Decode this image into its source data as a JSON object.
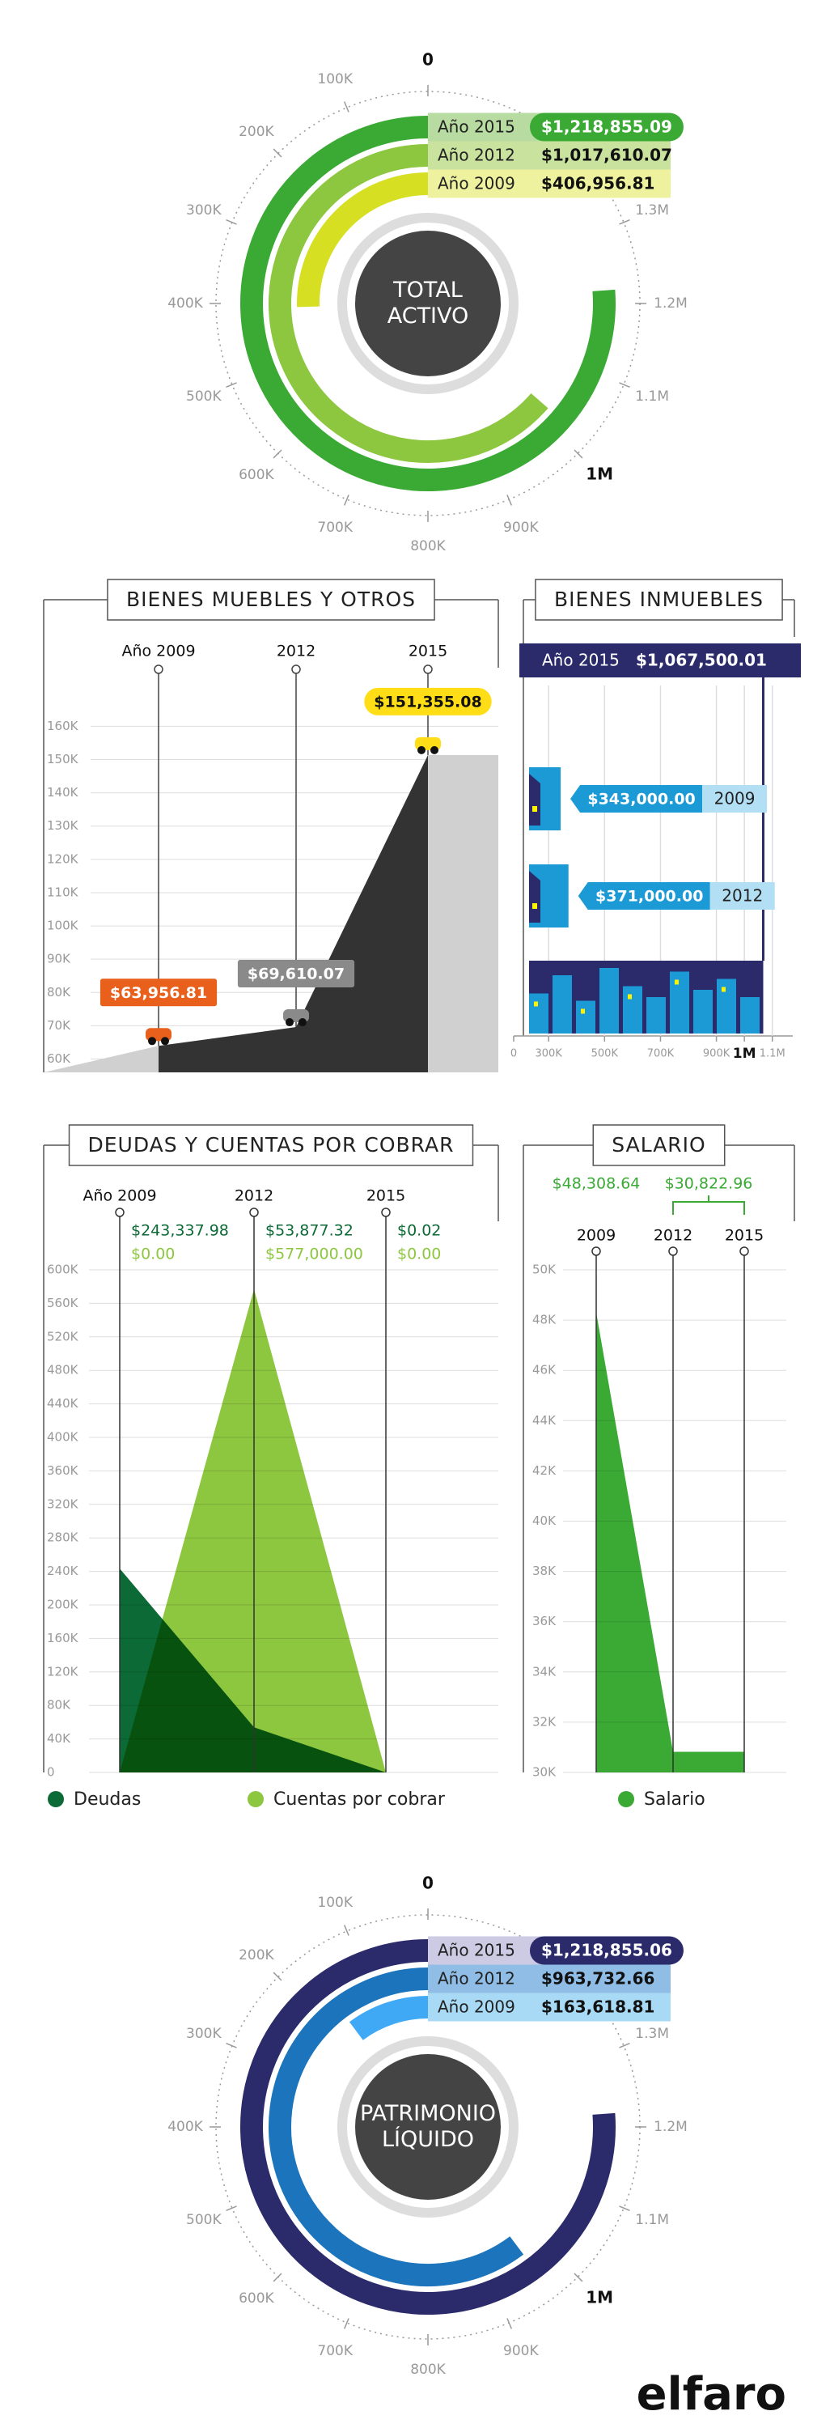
{
  "logo": "elfaro",
  "chart_data": [
    {
      "type": "radial-bar",
      "title": "TOTAL ACTIVO",
      "categories": [
        "Año 2015",
        "Año 2012",
        "Año 2009"
      ],
      "values": [
        1218855.09,
        1017610.07,
        406956.81
      ],
      "value_labels": [
        "$1,218,855.09",
        "$1,017,610.07",
        "$406,956.81"
      ],
      "colors": [
        "#3aaa35",
        "#8dc63f",
        "#d7df23"
      ],
      "label_colors": [
        "#b7dba0",
        "#c9e29e",
        "#eef29e"
      ],
      "ylim": [
        0,
        1600000
      ],
      "yticks": [
        0,
        {
          "value": 100000,
          "label": "100K"
        },
        {
          "value": 200000,
          "label": "200K"
        },
        {
          "value": 300000,
          "label": "300K"
        },
        {
          "value": 400000,
          "label": "400K"
        },
        {
          "value": 500000,
          "label": "500K"
        },
        {
          "value": 600000,
          "label": "600K"
        },
        {
          "value": 700000,
          "label": "700K"
        },
        {
          "value": 800000,
          "label": "800K"
        },
        {
          "value": 900000,
          "label": "900K"
        },
        {
          "value": 1000000,
          "label": "1M"
        },
        {
          "value": 1100000,
          "label": "1.1M"
        },
        {
          "value": 1200000,
          "label": "1.2M"
        },
        {
          "value": 1300000,
          "label": "1.3M"
        }
      ],
      "emphasized_tick": 1000000
    },
    {
      "type": "mountain",
      "title": "BIENES MUEBLES Y OTROS",
      "categories": [
        "Año 2009",
        "2012",
        "2015"
      ],
      "values": [
        63956.81,
        69610.07,
        151355.08
      ],
      "value_labels": [
        "$63,956.81",
        "$69,610.07",
        "$151,355.08"
      ],
      "label_colors": [
        "#e8601c",
        "#8a8a8a",
        "#ffde17"
      ],
      "color": "#333333",
      "ylim": [
        56000,
        163000
      ],
      "yticks": [
        {
          "value": 60000,
          "label": "60K"
        },
        {
          "value": 70000,
          "label": "70K"
        },
        {
          "value": 80000,
          "label": "80K"
        },
        {
          "value": 90000,
          "label": "90K"
        },
        {
          "value": 100000,
          "label": "100K"
        },
        {
          "value": 110000,
          "label": "110K"
        },
        {
          "value": 120000,
          "label": "120K"
        },
        {
          "value": 130000,
          "label": "130K"
        },
        {
          "value": 140000,
          "label": "140K"
        },
        {
          "value": 150000,
          "label": "150K"
        },
        {
          "value": 160000,
          "label": "160K"
        }
      ],
      "grid": true
    },
    {
      "type": "hbar",
      "title": "BIENES INMUEBLES",
      "categories": [
        "Año 2015",
        "2009",
        "2012"
      ],
      "values": [
        1067500.01,
        343000.0,
        371000.0
      ],
      "value_labels": [
        "$1,067,500.01",
        "$343,000.00",
        "$371,000.00"
      ],
      "color": "#1b9ad6",
      "xlim": [
        230000,
        1150000
      ],
      "xticks": [
        0,
        {
          "value": 300000,
          "label": "300K"
        },
        {
          "value": 500000,
          "label": "500K"
        },
        {
          "value": 700000,
          "label": "700K"
        },
        {
          "value": 900000,
          "label": "900K"
        },
        {
          "value": 1000000,
          "label": "1M"
        },
        {
          "value": 1100000,
          "label": "1.1M"
        }
      ],
      "emphasized_tick": 1000000,
      "grid": true
    },
    {
      "type": "area",
      "title": "DEUDAS Y CUENTAS POR COBRAR",
      "categories": [
        "Año 2009",
        "2012",
        "2015"
      ],
      "series": [
        {
          "name": "Deudas",
          "color": "#0b6a35",
          "values": [
            243337.98,
            53877.32,
            0.02
          ],
          "value_labels": [
            "$243,337.98",
            "$53,877.32",
            "$0.02"
          ]
        },
        {
          "name": "Cuentas por cobrar",
          "color": "#8dc63f",
          "values": [
            0,
            577000.0,
            0
          ],
          "value_labels": [
            "$0.00",
            "$577,000.00",
            "$0.00"
          ]
        }
      ],
      "ylim": [
        0,
        600000
      ],
      "yticks": [
        0,
        {
          "value": 40000,
          "label": "40K"
        },
        {
          "value": 80000,
          "label": "80K"
        },
        {
          "value": 120000,
          "label": "120K"
        },
        {
          "value": 160000,
          "label": "160K"
        },
        {
          "value": 200000,
          "label": "200K"
        },
        {
          "value": 240000,
          "label": "240K"
        },
        {
          "value": 280000,
          "label": "280K"
        },
        {
          "value": 320000,
          "label": "320K"
        },
        {
          "value": 360000,
          "label": "360K"
        },
        {
          "value": 400000,
          "label": "400K"
        },
        {
          "value": 440000,
          "label": "440K"
        },
        {
          "value": 480000,
          "label": "480K"
        },
        {
          "value": 520000,
          "label": "520K"
        },
        {
          "value": 560000,
          "label": "560K"
        },
        {
          "value": 600000,
          "label": "600K"
        }
      ],
      "grid": true
    },
    {
      "type": "area",
      "title": "SALARIO",
      "categories": [
        "2009",
        "2012",
        "2015"
      ],
      "series": [
        {
          "name": "Salario",
          "color": "#3aaa35",
          "values": [
            48308.64,
            30822.96,
            30822.96
          ],
          "value_labels": [
            "$48,308.64",
            "$30,822.96",
            null
          ]
        }
      ],
      "ylim": [
        30000,
        50000
      ],
      "yticks": [
        {
          "value": 30000,
          "label": "30K"
        },
        {
          "value": 32000,
          "label": "32K"
        },
        {
          "value": 34000,
          "label": "34K"
        },
        {
          "value": 36000,
          "label": "36K"
        },
        {
          "value": 38000,
          "label": "38K"
        },
        {
          "value": 40000,
          "label": "40K"
        },
        {
          "value": 42000,
          "label": "42K"
        },
        {
          "value": 44000,
          "label": "44K"
        },
        {
          "value": 46000,
          "label": "46K"
        },
        {
          "value": 48000,
          "label": "48K"
        },
        {
          "value": 50000,
          "label": "50K"
        }
      ],
      "grid": true
    },
    {
      "type": "radial-bar",
      "title": "PATRIMONIO LÍQUIDO",
      "categories": [
        "Año 2015",
        "Año 2012",
        "Año 2009"
      ],
      "values": [
        1218855.06,
        963732.66,
        163618.81
      ],
      "value_labels": [
        "$1,218,855.06",
        "$963,732.66",
        "$163,618.81"
      ],
      "colors": [
        "#2b2a6b",
        "#1c75bc",
        "#3fa9f5"
      ],
      "label_colors": [
        "#cdcae3",
        "#8fbde6",
        "#a9daf5"
      ],
      "ylim": [
        0,
        1600000
      ],
      "yticks": [
        0,
        {
          "value": 100000,
          "label": "100K"
        },
        {
          "value": 200000,
          "label": "200K"
        },
        {
          "value": 300000,
          "label": "300K"
        },
        {
          "value": 400000,
          "label": "400K"
        },
        {
          "value": 500000,
          "label": "500K"
        },
        {
          "value": 600000,
          "label": "600K"
        },
        {
          "value": 700000,
          "label": "700K"
        },
        {
          "value": 800000,
          "label": "800K"
        },
        {
          "value": 900000,
          "label": "900K"
        },
        {
          "value": 1000000,
          "label": "1M"
        },
        {
          "value": 1100000,
          "label": "1.1M"
        },
        {
          "value": 1200000,
          "label": "1.2M"
        },
        {
          "value": 1300000,
          "label": "1.3M"
        }
      ],
      "emphasized_tick": 1000000
    }
  ]
}
